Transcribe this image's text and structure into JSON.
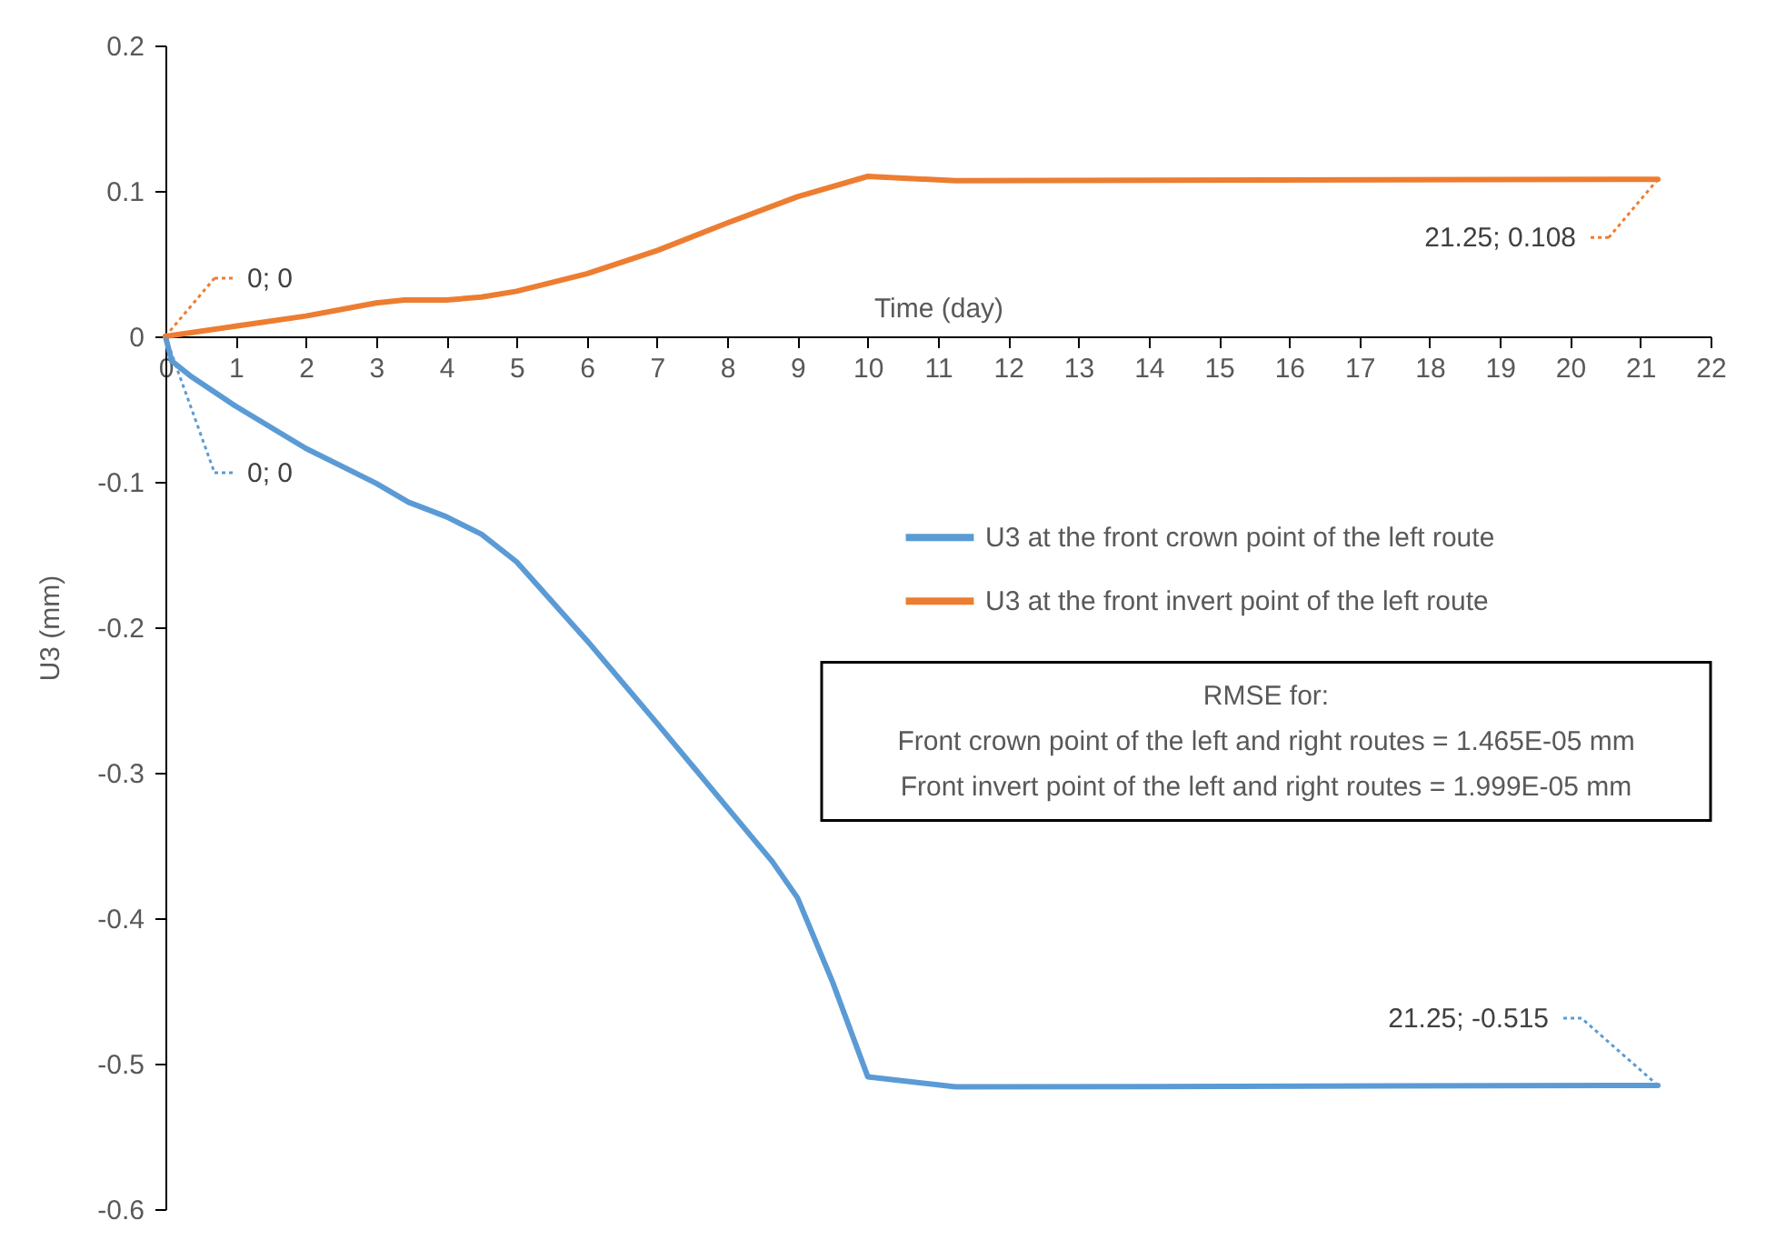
{
  "chart_data": {
    "type": "line",
    "xlabel": "Time (day)",
    "ylabel": "U3 (mm)",
    "xlim": [
      0,
      22
    ],
    "xticks": [
      0,
      1,
      2,
      3,
      4,
      5,
      6,
      7,
      8,
      9,
      10,
      11,
      12,
      13,
      14,
      15,
      16,
      17,
      18,
      19,
      20,
      21,
      22
    ],
    "ylim": [
      -0.6,
      0.2
    ],
    "yticks": [
      -0.6,
      -0.5,
      -0.4,
      -0.3,
      -0.2,
      -0.1,
      0,
      0.1,
      0.2
    ],
    "grid": false,
    "legend": "right",
    "series": [
      {
        "name": "U3 at the front crown point of the left route",
        "color": "#5b9bd5",
        "x": [
          0,
          0.09,
          0.35,
          1,
          2,
          3,
          3.46,
          4,
          4.5,
          5,
          6,
          7,
          8,
          8.64,
          9,
          9.5,
          10,
          11.25,
          21.25
        ],
        "values": [
          0,
          -0.017,
          -0.027,
          -0.048,
          -0.077,
          -0.101,
          -0.114,
          -0.124,
          -0.136,
          -0.155,
          -0.209,
          -0.266,
          -0.324,
          -0.361,
          -0.386,
          -0.444,
          -0.509,
          -0.516,
          -0.515
        ],
        "value_labels": [
          "0; 0",
          null,
          null,
          null,
          null,
          null,
          null,
          null,
          null,
          null,
          null,
          null,
          null,
          null,
          null,
          null,
          null,
          null,
          "21.25; -0.515"
        ]
      },
      {
        "name": "U3 at the front invert point of the left route",
        "color": "#ed7d31",
        "x": [
          0,
          1,
          2,
          3,
          3.4,
          4,
          4.5,
          5,
          6,
          7,
          8,
          9,
          10,
          11.25,
          21.25
        ],
        "values": [
          0,
          0.007,
          0.014,
          0.023,
          0.025,
          0.025,
          0.027,
          0.031,
          0.043,
          0.059,
          0.078,
          0.096,
          0.11,
          0.107,
          0.108
        ],
        "value_labels": [
          "0; 0",
          null,
          null,
          null,
          null,
          null,
          null,
          null,
          null,
          null,
          null,
          null,
          null,
          null,
          "21.25; 0.108"
        ]
      }
    ],
    "annotations": [
      "RMSE for:",
      "Front crown point of the left and right routes = 1.465E-05 mm",
      "Front invert point of the left and right routes = 1.999E-05 mm"
    ]
  }
}
